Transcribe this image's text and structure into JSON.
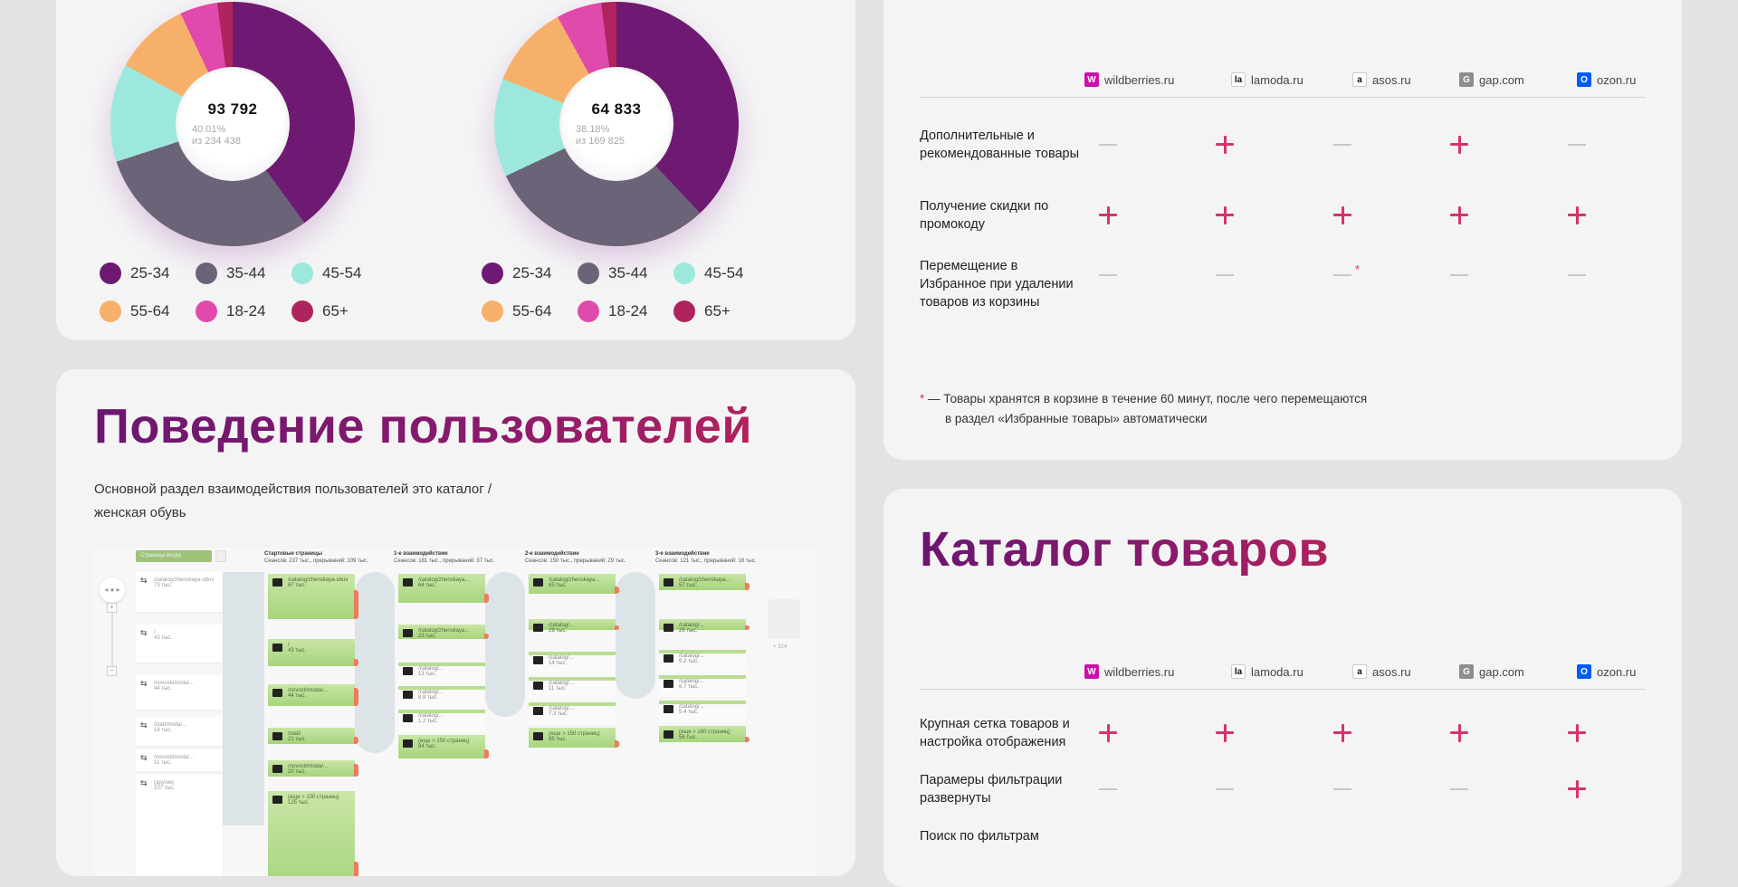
{
  "demographics": {
    "legend": [
      {
        "label": "25-34",
        "color": "#6e1a72"
      },
      {
        "label": "35-44",
        "color": "#6b6377"
      },
      {
        "label": "45-54",
        "color": "#9de8dc"
      },
      {
        "label": "55-64",
        "color": "#f7b06a"
      },
      {
        "label": "18-24",
        "color": "#e04aac"
      },
      {
        "label": "65+",
        "color": "#b0245e"
      }
    ],
    "charts": [
      {
        "value": "93 792",
        "percent": "40.01%",
        "total": "из 234 438"
      },
      {
        "value": "64 833",
        "percent": "38.18%",
        "total": "из 169 825"
      }
    ]
  },
  "chart_data": [
    {
      "type": "pie",
      "title": "",
      "center_value": "93 792",
      "center_note": "40.01% из 234 438",
      "categories": [
        "25-34",
        "35-44",
        "45-54",
        "55-64",
        "18-24",
        "65+"
      ],
      "values": [
        40,
        30,
        13,
        10,
        5,
        2
      ],
      "legend_position": "bottom"
    },
    {
      "type": "pie",
      "title": "",
      "center_value": "64 833",
      "center_note": "38.18% из 169 825",
      "categories": [
        "25-34",
        "35-44",
        "45-54",
        "55-64",
        "18-24",
        "65+"
      ],
      "values": [
        38,
        30,
        13,
        11,
        6,
        2
      ],
      "legend_position": "bottom"
    }
  ],
  "behavior": {
    "title": "Поведение пользователей",
    "description": "Основной раздел взаимодействия пользователей это каталог / женская обувь",
    "flow": {
      "select_label": "Страница входа",
      "columns": [
        {
          "title": "Стартовые страницы",
          "sub": "Сеансов: 237 тыс., прерываний: 109 тыс."
        },
        {
          "title": "1-е взаимодействие",
          "sub": "Сеансов: 181 тыс., прерываний: 37 тыс."
        },
        {
          "title": "2-е взаимодействие",
          "sub": "Сеансов: 150 тыс., прерываний: 29 тыс."
        },
        {
          "title": "3-е взаимодействие",
          "sub": "Сеансов: 121 тыс., прерываний: 18 тыс."
        }
      ],
      "sources": [
        {
          "name": "/catalog/zhenskaya-obuv",
          "count": "73 тыс."
        },
        {
          "name": "/",
          "count": "43 тыс."
        },
        {
          "name": "/novosti/moda/...",
          "count": "44 тыс."
        },
        {
          "name": "/stati/moda/...",
          "count": "18 тыс."
        },
        {
          "name": "/novosti/moda/...",
          "count": "11 тыс."
        },
        {
          "name": "(другие)",
          "count": "107 тыс."
        }
      ],
      "col1": [
        {
          "name": "/catalog/zhenskaya-obuv",
          "count": "67 тыс."
        },
        {
          "name": "/",
          "count": "43 тыс."
        },
        {
          "name": "/novosti/moda/...",
          "count": "44 тыс."
        },
        {
          "name": "/stati/",
          "count": "21 тыс."
        },
        {
          "name": "/novosti/moda/...",
          "count": "20 тыс."
        },
        {
          "name": "(еще > 100 страниц)",
          "count": "125 тыс."
        }
      ],
      "col2": [
        {
          "name": "/catalog/zhenskaya...",
          "count": "64 тыс."
        },
        {
          "name": "/catalog/zhenskaya...",
          "count": "23 тыс."
        },
        {
          "name": "/catalog/...",
          "count": "13 тыс."
        },
        {
          "name": "/catalog/...",
          "count": "8.9 тыс."
        },
        {
          "name": "/catalog/...",
          "count": "1.2 тыс."
        },
        {
          "name": "(еще > 150 страниц)",
          "count": "84 тыс."
        }
      ],
      "col3": [
        {
          "name": "/catalog/zhenskaya...",
          "count": "65 тыс."
        },
        {
          "name": "/catalog/...",
          "count": "29 тыс."
        },
        {
          "name": "/catalog/...",
          "count": "14 тыс."
        },
        {
          "name": "/catalog/...",
          "count": "11 тыс."
        },
        {
          "name": "/catalog/...",
          "count": "7.3 тыс."
        },
        {
          "name": "(еще > 150 страниц)",
          "count": "85 тыс."
        }
      ],
      "col4": [
        {
          "name": "/catalog/zhenskaya...",
          "count": "57 тыс."
        },
        {
          "name": "/catalog/...",
          "count": "26 тыс."
        },
        {
          "name": "/catalog/...",
          "count": "9.2 тыс."
        },
        {
          "name": "/catalog/...",
          "count": "6.7 тыс."
        },
        {
          "name": "/catalog/...",
          "count": "5.4 тыс."
        },
        {
          "name": "(еще > 160 страниц)",
          "count": "56 тыс."
        }
      ],
      "more_label": "+ 324"
    }
  },
  "shops": [
    {
      "name": "wildberries.ru",
      "logo": "W",
      "color": "#cb11ab"
    },
    {
      "name": "lamoda.ru",
      "logo": "la",
      "color": "#ffffff"
    },
    {
      "name": "asos.ru",
      "logo": "a",
      "color": "#ffffff"
    },
    {
      "name": "gap.com",
      "logo": "G",
      "color": "#8d8d8d"
    },
    {
      "name": "ozon.ru",
      "logo": "O",
      "color": "#005bff"
    }
  ],
  "cart": {
    "rows": [
      {
        "label": "Дополнительные и рекомендованные товары",
        "marks": [
          "-",
          "+",
          "-",
          "+",
          "-"
        ]
      },
      {
        "label": "Получение скидки по промокоду",
        "marks": [
          "+",
          "+",
          "+",
          "+",
          "+"
        ]
      },
      {
        "label": "Перемещение в Избранное при удалении товаров из корзины",
        "marks": [
          "-",
          "-",
          "-*",
          "-",
          "-"
        ]
      }
    ],
    "footnote_star": "*",
    "footnote_line1": "— Товары хранятся в корзине в течение 60 минут, после чего перемещаются",
    "footnote_line2": "в раздел «Избранные товары» автоматически"
  },
  "catalog": {
    "title": "Каталог товаров",
    "rows": [
      {
        "label": "Крупная сетка товаров и настройка отображения",
        "marks": [
          "+",
          "+",
          "+",
          "+",
          "+"
        ]
      },
      {
        "label": "Парамеры фильтрации развернуты",
        "marks": [
          "-",
          "-",
          "-",
          "-",
          "+"
        ]
      },
      {
        "label": "Поиск по фильтрам",
        "marks": []
      }
    ]
  }
}
